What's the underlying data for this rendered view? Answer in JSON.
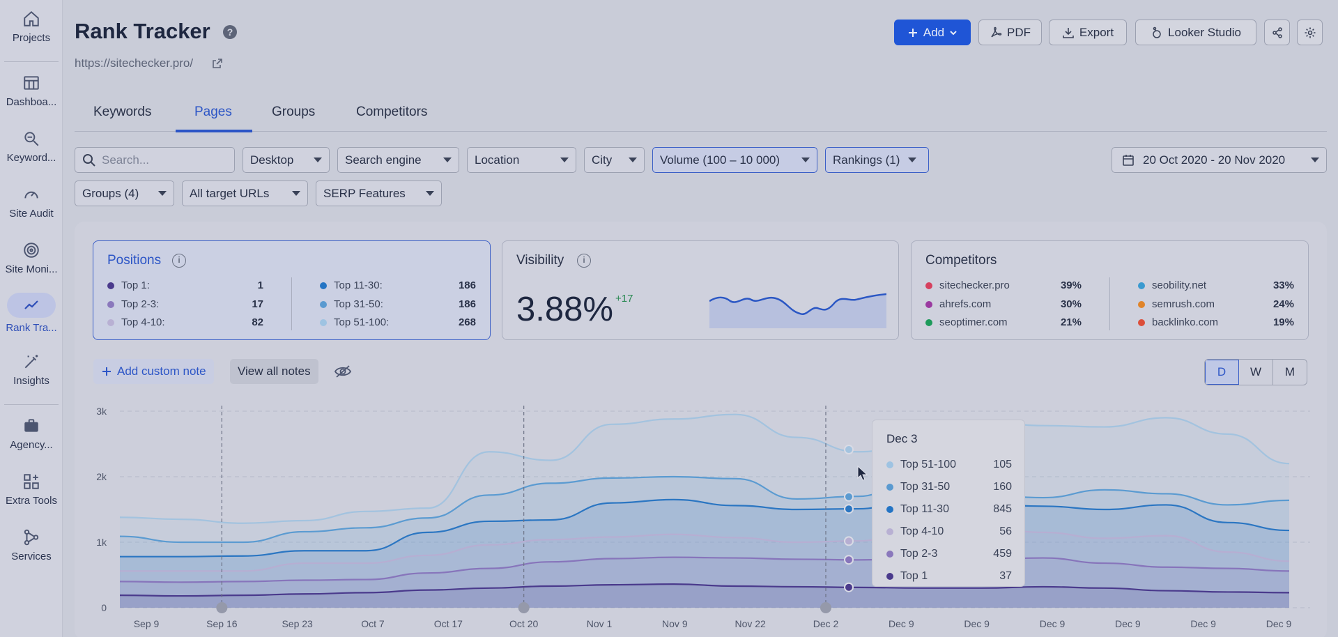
{
  "sidebar": {
    "items": [
      {
        "label": "Projects",
        "icon": "home-icon"
      },
      {
        "label": "Dashboa...",
        "icon": "table-icon"
      },
      {
        "label": "Keyword...",
        "icon": "keyword-search-icon"
      },
      {
        "label": "Site Audit",
        "icon": "gauge-icon"
      },
      {
        "label": "Site Moni...",
        "icon": "monitor-icon"
      },
      {
        "label": "Rank Tra...",
        "icon": "trend-line-icon"
      },
      {
        "label": "Insights",
        "icon": "magic-wand-icon"
      },
      {
        "label": "Agency...",
        "icon": "briefcase-icon"
      },
      {
        "label": "Extra Tools",
        "icon": "grid-plus-icon"
      },
      {
        "label": "Services",
        "icon": "nodes-icon"
      }
    ]
  },
  "header": {
    "title": "Rank Tracker",
    "url": "https://sitechecker.pro/",
    "add_label": "Add",
    "pdf_label": "PDF",
    "export_label": "Export",
    "looker_label": "Looker Studio"
  },
  "tabs": [
    {
      "label": "Keywords"
    },
    {
      "label": "Pages"
    },
    {
      "label": "Groups"
    },
    {
      "label": "Competitors"
    }
  ],
  "filters": {
    "search_placeholder": "Search...",
    "device": "Desktop",
    "engine": "Search engine",
    "location": "Location",
    "city": "City",
    "volume": "Volume (100 – 10 000)",
    "rankings": "Rankings (1)",
    "date_range": "20 Oct 2020 - 20 Nov 2020",
    "groups": "Groups (4)",
    "urls": "All target URLs",
    "serp": "SERP Features"
  },
  "positions": {
    "title": "Positions",
    "left": [
      {
        "label": "Top 1:",
        "value": "1",
        "color": "#4a3a8c"
      },
      {
        "label": "Top 2-3:",
        "value": "17",
        "color": "#8a78bc"
      },
      {
        "label": "Top 4-10:",
        "value": "82",
        "color": "#b8b0d3"
      }
    ],
    "right": [
      {
        "label": "Top 11-30:",
        "value": "186",
        "color": "#2474c4"
      },
      {
        "label": "Top 31-50:",
        "value": "186",
        "color": "#5a9ad0"
      },
      {
        "label": "Top 51-100:",
        "value": "268",
        "color": "#9ec3e2"
      }
    ]
  },
  "visibility": {
    "title": "Visibility",
    "value": "3.88%",
    "delta": "+17"
  },
  "competitors": {
    "title": "Competitors",
    "left": [
      {
        "name": "sitechecker.pro",
        "value": "39%",
        "color": "#d6405e"
      },
      {
        "name": "ahrefs.com",
        "value": "30%",
        "color": "#9a3aa0"
      },
      {
        "name": "seoptimer.com",
        "value": "21%",
        "color": "#1d9a5a"
      }
    ],
    "right": [
      {
        "name": "seobility.net",
        "value": "33%",
        "color": "#3a9ad0"
      },
      {
        "name": "semrush.com",
        "value": "24%",
        "color": "#e0842a"
      },
      {
        "name": "backlinko.com",
        "value": "19%",
        "color": "#dc4e3a"
      }
    ]
  },
  "notes": {
    "add_label": "Add custom note",
    "view_label": "View all notes"
  },
  "granularity": [
    "D",
    "W",
    "M"
  ],
  "tooltip": {
    "date": "Dec 3",
    "rows": [
      {
        "label": "Top 51-100",
        "value": "105",
        "color": "#9ec3e2"
      },
      {
        "label": "Top 31-50",
        "value": "160",
        "color": "#5a9ad0"
      },
      {
        "label": "Top 11-30",
        "value": "845",
        "color": "#2474c4"
      },
      {
        "label": "Top 4-10",
        "value": "56",
        "color": "#b8b0d3"
      },
      {
        "label": "Top 2-3",
        "value": "459",
        "color": "#8a78bc"
      },
      {
        "label": "Top 1",
        "value": "37",
        "color": "#4a3a8c"
      }
    ]
  },
  "chart_data": {
    "type": "area",
    "title": "",
    "xlabel": "",
    "ylabel": "",
    "ylim": [
      0,
      3000
    ],
    "y_ticks": [
      "0",
      "1k",
      "2k",
      "3k"
    ],
    "x_ticks": [
      "Sep 9",
      "Sep 16",
      "Sep 23",
      "Oct 7",
      "Oct 17",
      "Oct 20",
      "Nov 1",
      "Nov 9",
      "Nov 22",
      "Dec 2",
      "Dec 9",
      "Dec 9",
      "Dec 9",
      "Dec 9",
      "Dec 9",
      "Dec 9"
    ],
    "note_markers": [
      "Sep 16",
      "Oct 20",
      "Dec 2"
    ],
    "series": [
      {
        "name": "Top 51-100",
        "color": "#a3c3df",
        "values": [
          1380,
          1350,
          1290,
          1330,
          1470,
          1520,
          2380,
          2250,
          2800,
          2880,
          2950,
          2600,
          2380,
          2500,
          2850,
          2780,
          2760,
          2900,
          2650,
          2200
        ]
      },
      {
        "name": "Top 31-50",
        "color": "#5b9bd1",
        "values": [
          1090,
          1000,
          1000,
          1160,
          1220,
          1370,
          1720,
          1900,
          1980,
          2000,
          1970,
          1660,
          1700,
          2030,
          1720,
          1680,
          1800,
          1740,
          1570,
          1640
        ]
      },
      {
        "name": "Top 11-30",
        "color": "#2b76c2",
        "values": [
          780,
          780,
          790,
          870,
          870,
          1150,
          1320,
          1340,
          1600,
          1650,
          1560,
          1500,
          1510,
          1680,
          1580,
          1550,
          1500,
          1570,
          1300,
          1180
        ]
      },
      {
        "name": "Top 4-10",
        "color": "#b6aed2",
        "values": [
          560,
          560,
          560,
          680,
          680,
          800,
          960,
          1040,
          1080,
          1120,
          1070,
          1000,
          1020,
          1200,
          1240,
          1150,
          1060,
          1100,
          850,
          710
        ]
      },
      {
        "name": "Top 2-3",
        "color": "#8775bb",
        "values": [
          400,
          390,
          400,
          420,
          430,
          530,
          600,
          700,
          750,
          770,
          760,
          740,
          730,
          750,
          740,
          760,
          680,
          620,
          600,
          560
        ]
      },
      {
        "name": "Top 1",
        "color": "#4a3a8c",
        "values": [
          190,
          180,
          190,
          210,
          230,
          270,
          300,
          330,
          350,
          360,
          330,
          320,
          310,
          300,
          300,
          320,
          300,
          260,
          240,
          230
        ]
      }
    ]
  }
}
